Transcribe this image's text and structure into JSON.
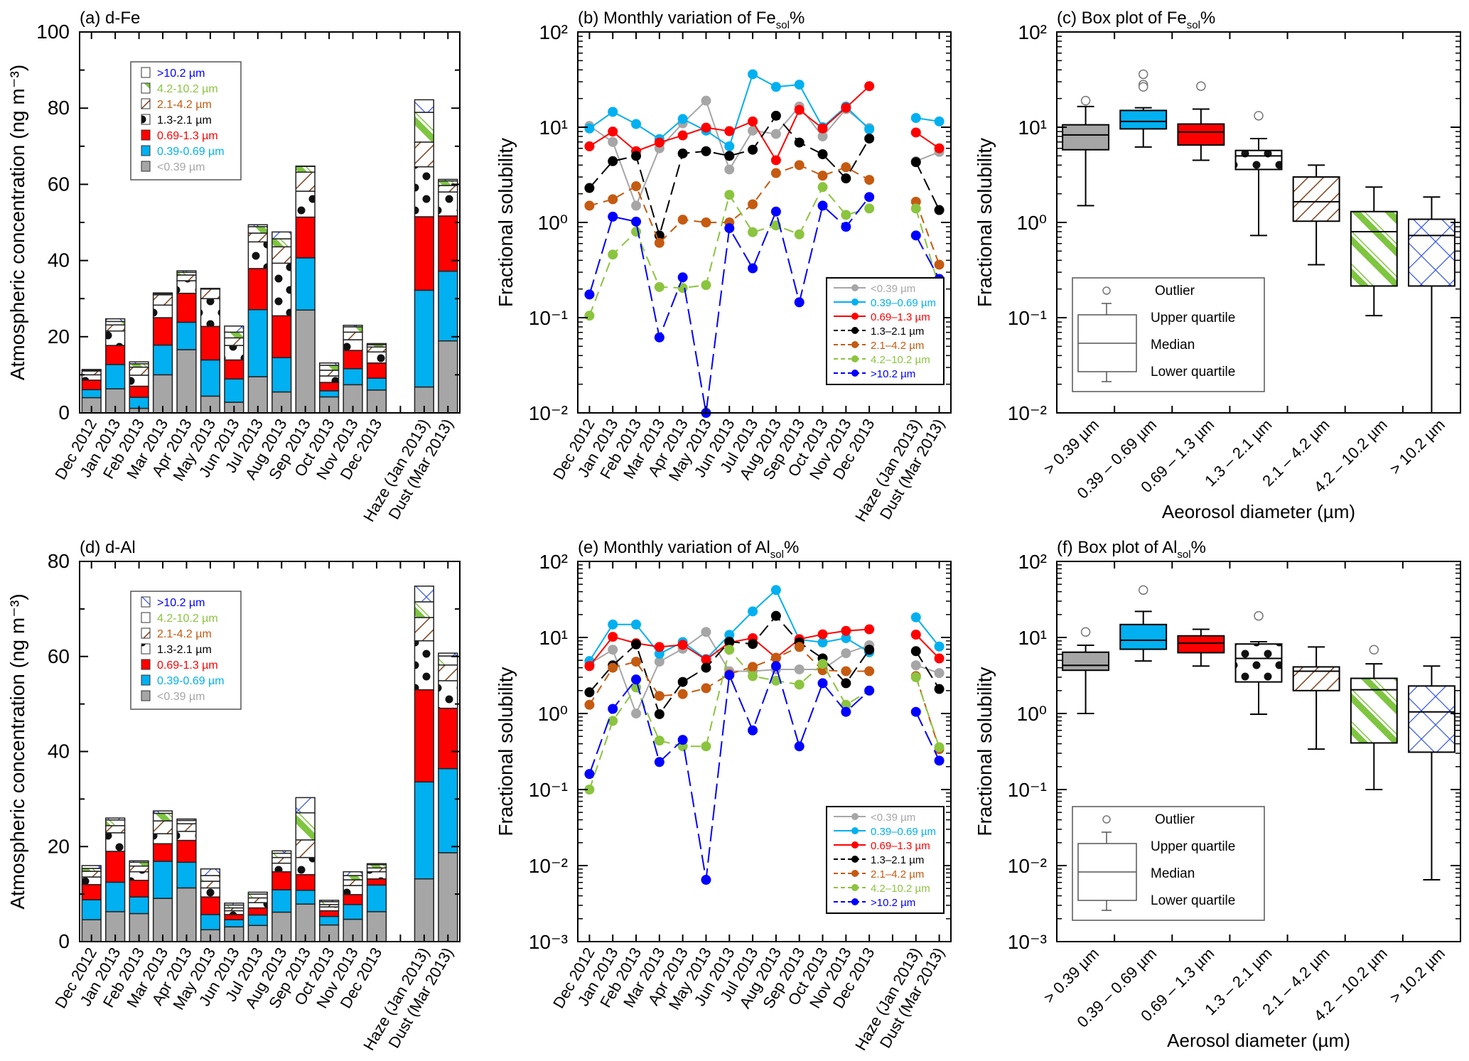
{
  "size_classes": [
    "<0.39 µm",
    "0.39-0.69 µm",
    "0.69-1.3 µm",
    "1.3-2.1 µm",
    "2.1-4.2 µm",
    "4.2-10.2 µm",
    ">10.2 µm"
  ],
  "colors": {
    "lt039": "#a6a6a6",
    "s039_069": "#00b0f0",
    "s069_13": "#ff0000",
    "s13_21": "#000000",
    "s21_42": "#c55a11",
    "s42_102": "#8bc43f",
    "gt102": "#0000ff"
  },
  "chart_data": [
    {
      "id": "a",
      "type": "bar",
      "stacked": true,
      "title": "(a) d-Fe",
      "ylabel": "Atmospheric concentration (ng m⁻³)",
      "ylim": [
        0,
        100
      ],
      "yticks": [
        0,
        20,
        40,
        60,
        80,
        100
      ],
      "categories": [
        "Dec 2012",
        "Jan 2013",
        "Feb 2013",
        "Mar 2013",
        "Apr 2013",
        "May 2013",
        "Jun 2013",
        "Jul 2013",
        "Aug 2013",
        "Sep 2013",
        "Oct 2013",
        "Nov 2013",
        "Dec 2013",
        "",
        "Haze (Jan 2013)",
        "Dust (Mar 2013)"
      ],
      "legend": [
        "<0.39 µm",
        "0.39-0.69 µm",
        "0.69-1.3 µm",
        "1.3-2.1 µm",
        "2.1-4.2 µm",
        "4.2-10.2 µm",
        ">10.2 µm"
      ],
      "legend_position": "top-left",
      "series": [
        {
          "name": "<0.39 µm",
          "values": [
            4.0,
            6.3,
            1.2,
            10.0,
            16.6,
            4.4,
            2.8,
            9.5,
            5.5,
            27.0,
            4.2,
            7.4,
            6.0,
            null,
            6.8,
            18.9
          ]
        },
        {
          "name": "0.39-0.69 µm",
          "values": [
            2.1,
            6.4,
            2.9,
            7.8,
            7.2,
            9.5,
            6.1,
            17.6,
            9.0,
            13.7,
            1.6,
            4.2,
            3.1,
            null,
            25.4,
            18.3
          ]
        },
        {
          "name": "0.69-1.3 µm",
          "values": [
            2.5,
            5.0,
            2.9,
            7.2,
            7.6,
            8.8,
            5.0,
            10.8,
            11.0,
            10.7,
            2.2,
            4.8,
            4.0,
            null,
            19.3,
            14.5
          ]
        },
        {
          "name": "1.3-2.1 µm",
          "values": [
            1.4,
            3.8,
            2.9,
            3.3,
            3.3,
            7.3,
            3.8,
            7.0,
            13.8,
            6.8,
            1.7,
            2.8,
            2.9,
            null,
            13.1,
            6.3
          ]
        },
        {
          "name": "2.1-4.2 µm",
          "values": [
            1.0,
            1.6,
            2.1,
            2.7,
            1.5,
            2.5,
            2.0,
            2.3,
            4.3,
            5.0,
            1.5,
            2.0,
            1.3,
            null,
            6.5,
            1.7
          ]
        },
        {
          "name": "4.2-10.2 µm",
          "values": [
            0.2,
            0.9,
            0.9,
            0.3,
            0.7,
            0.1,
            1.5,
            1.7,
            2.1,
            1.5,
            1.3,
            1.4,
            0.6,
            null,
            7.8,
            1.2
          ]
        },
        {
          "name": ">10.2 µm",
          "values": [
            0.2,
            0.7,
            0.5,
            0.2,
            0.4,
            0.1,
            1.6,
            0.5,
            1.8,
            0.1,
            0.6,
            0.4,
            0.3,
            null,
            3.3,
            0.4
          ]
        }
      ]
    },
    {
      "id": "b",
      "type": "line",
      "title": "(b) Monthly variation of Fe",
      "title_sub": "sol",
      "title_suffix": "%",
      "ylabel": "Fractional solubility",
      "yscale": "log",
      "ylim": [
        0.01,
        100
      ],
      "yticks": [
        "10⁻²",
        "10⁻¹",
        "10⁰",
        "10¹",
        "10²"
      ],
      "categories": [
        "Dec 2012",
        "Jan 2013",
        "Feb 2013",
        "Mar 2013",
        "Apr 2013",
        "May 2013",
        "Jun 2013",
        "Jul 2013",
        "Aug 2013",
        "Sep 2013",
        "Oct 2013",
        "Nov 2013",
        "Dec 2013",
        "",
        "Haze (Jan 2013)",
        "Dust (Mar 2013)"
      ],
      "legend_position": "bottom-right",
      "series": [
        {
          "name": "<0.39 µm",
          "values": [
            10.3,
            7.0,
            1.5,
            6.0,
            11.0,
            19.0,
            3.6,
            9.2,
            8.5,
            16.5,
            8.0,
            15.5,
            9.8,
            null,
            4.4,
            5.5
          ]
        },
        {
          "name": "0.39–0.69 µm",
          "values": [
            9.7,
            14.5,
            10.8,
            7.5,
            12.2,
            9.2,
            6.3,
            36.0,
            26.5,
            28.0,
            10.0,
            16.5,
            9.5,
            null,
            12.5,
            11.5
          ]
        },
        {
          "name": "0.69–1.3 µm",
          "values": [
            6.3,
            9.0,
            5.6,
            6.9,
            8.2,
            9.9,
            9.1,
            11.5,
            4.5,
            15.2,
            9.7,
            16.0,
            27.0,
            null,
            8.8,
            6.0
          ]
        },
        {
          "name": "1.3–2.1 µm",
          "values": [
            2.3,
            4.4,
            5.0,
            0.73,
            5.3,
            5.6,
            5.0,
            5.8,
            13.2,
            6.9,
            5.2,
            2.9,
            7.6,
            null,
            4.3,
            1.35
          ]
        },
        {
          "name": "2.1–4.2 µm",
          "values": [
            1.5,
            1.75,
            2.4,
            0.61,
            1.07,
            1.0,
            1.0,
            1.55,
            3.3,
            4.0,
            3.1,
            3.8,
            2.8,
            null,
            1.65,
            0.36
          ]
        },
        {
          "name": "4.2–10.2 µm",
          "values": [
            0.105,
            0.46,
            0.8,
            0.21,
            0.205,
            0.22,
            1.95,
            0.79,
            0.93,
            0.75,
            2.35,
            1.2,
            1.4,
            null,
            1.4,
            0.205
          ]
        },
        {
          "name": ">10.2 µm",
          "values": [
            0.175,
            1.15,
            1.02,
            0.062,
            0.265,
            0.01,
            0.87,
            0.33,
            1.3,
            0.145,
            1.5,
            0.9,
            1.85,
            null,
            0.73,
            0.255
          ]
        }
      ]
    },
    {
      "id": "c",
      "type": "box",
      "title": "(c) Box plot of Fe",
      "title_sub": "sol",
      "title_suffix": "%",
      "ylabel": "Fractional solubility",
      "xlabel": "Aeorosol diameter (µm)",
      "yscale": "log",
      "ylim": [
        0.01,
        100
      ],
      "yticks": [
        "10⁻²",
        "10⁻¹",
        "10⁰",
        "10¹",
        "10²"
      ],
      "categories": [
        "> 0.39 µm",
        "0.39 – 0.69 µm",
        "0.69 – 1.3 µm",
        "1.3 – 2.1 µm",
        "2.1 – 4.2 µm",
        "4.2 – 10.2 µm",
        "> 10.2 µm"
      ],
      "boxes": [
        {
          "whisker_low": 1.5,
          "q1": 5.8,
          "median": 8.3,
          "q3": 10.6,
          "whisker_high": 16.5,
          "outliers": [
            19.0
          ]
        },
        {
          "whisker_low": 6.2,
          "q1": 9.6,
          "median": 11.5,
          "q3": 15.0,
          "whisker_high": 16.0,
          "outliers": [
            36.0,
            28.0,
            26.5
          ]
        },
        {
          "whisker_low": 4.5,
          "q1": 6.5,
          "median": 8.9,
          "q3": 10.8,
          "whisker_high": 15.5,
          "outliers": [
            27.0
          ]
        },
        {
          "whisker_low": 0.73,
          "q1": 3.6,
          "median": 5.0,
          "q3": 5.7,
          "whisker_high": 7.6,
          "outliers": [
            13.2
          ]
        },
        {
          "whisker_low": 0.36,
          "q1": 1.03,
          "median": 1.65,
          "q3": 3.0,
          "whisker_high": 4.0,
          "outliers": []
        },
        {
          "whisker_low": 0.105,
          "q1": 0.215,
          "median": 0.8,
          "q3": 1.3,
          "whisker_high": 2.35,
          "outliers": []
        },
        {
          "whisker_low": 0.01,
          "q1": 0.215,
          "median": 0.73,
          "q3": 1.08,
          "whisker_high": 1.85,
          "outliers": []
        }
      ],
      "legend": {
        "outlier": "Outlier",
        "upper": "Upper quartile",
        "median": "Median",
        "lower": "Lower quartile"
      },
      "legend_position": "bottom-left"
    },
    {
      "id": "d",
      "type": "bar",
      "stacked": true,
      "title": "(d) d-Al",
      "ylabel": "Atmospheric concentration (ng m⁻³)",
      "ylim": [
        0,
        80
      ],
      "yticks": [
        0,
        20,
        40,
        60,
        80
      ],
      "categories": [
        "Dec 2012",
        "Jan 2013",
        "Feb 2013",
        "Mar 2013",
        "Apr 2013",
        "May 2013",
        "Jun 2013",
        "Jul 2013",
        "Aug 2013",
        "Sep 2013",
        "Oct 2013",
        "Nov 2013",
        "Dec 2013",
        "",
        "Haze (Jan 2013)",
        "Dust (Mar 2013)"
      ],
      "legend": [
        "<0.39 µm",
        "0.39-0.69 µm",
        "0.69-1.3 µm",
        "1.3-2.1 µm",
        "2.1-4.2 µm",
        "4.2-10.2 µm",
        ">10.2 µm"
      ],
      "legend_position": "top-left",
      "series": [
        {
          "name": "<0.39 µm",
          "values": [
            4.6,
            6.3,
            5.9,
            9.1,
            11.3,
            2.5,
            3.1,
            3.4,
            6.2,
            7.9,
            3.5,
            4.7,
            6.3,
            null,
            13.2,
            18.7
          ]
        },
        {
          "name": "0.39-0.69 µm",
          "values": [
            4.2,
            6.2,
            3.5,
            7.8,
            5.4,
            3.2,
            1.5,
            2.2,
            4.7,
            2.9,
            1.8,
            3.1,
            5.6,
            null,
            20.4,
            17.7
          ]
        },
        {
          "name": "0.69-1.3 µm",
          "values": [
            3.2,
            6.5,
            3.5,
            3.7,
            4.6,
            3.7,
            1.1,
            1.5,
            3.8,
            3.3,
            1.2,
            2.1,
            1.3,
            null,
            19.4,
            12.7
          ]
        },
        {
          "name": "1.3-2.1 µm",
          "values": [
            1.6,
            3.9,
            1.8,
            2.1,
            1.9,
            1.9,
            0.8,
            1.1,
            1.8,
            3.6,
            0.8,
            1.9,
            1.5,
            null,
            10.3,
            5.8
          ]
        },
        {
          "name": "2.1-4.2 µm",
          "values": [
            1.2,
            1.5,
            1.2,
            2.7,
            1.6,
            1.4,
            0.6,
            1.0,
            1.2,
            3.7,
            0.5,
            1.2,
            0.8,
            null,
            4.9,
            3.3
          ]
        },
        {
          "name": "4.2-10.2 µm",
          "values": [
            0.6,
            1.2,
            0.8,
            1.6,
            0.7,
            1.2,
            0.6,
            0.8,
            0.9,
            5.7,
            0.6,
            0.9,
            0.7,
            null,
            3.3,
            1.9
          ]
        },
        {
          "name": ">10.2 µm",
          "values": [
            0.6,
            0.4,
            0.3,
            0.5,
            0.3,
            1.4,
            0.4,
            0.4,
            0.5,
            3.2,
            0.3,
            0.8,
            0.2,
            null,
            3.3,
            0.6
          ]
        }
      ]
    },
    {
      "id": "e",
      "type": "line",
      "title": "(e) Monthly variation of Al",
      "title_sub": "sol",
      "title_suffix": "%",
      "ylabel": "Fractional solubility",
      "yscale": "log",
      "ylim": [
        0.001,
        100
      ],
      "yticks": [
        "10⁻³",
        "10⁻²",
        "10⁻¹",
        "10⁰",
        "10¹",
        "10²"
      ],
      "categories": [
        "Dec 2012",
        "Jan 2013",
        "Feb 2013",
        "Mar 2013",
        "Apr 2013",
        "May 2013",
        "Jun 2013",
        "Jul 2013",
        "Aug 2013",
        "Sep 2013",
        "Oct 2013",
        "Nov 2013",
        "Dec 2013",
        "",
        "Haze (Jan 2013)",
        "Dust (Mar 2013)"
      ],
      "legend_position": "bottom-right",
      "series": [
        {
          "name": "<0.39 µm",
          "values": [
            4.5,
            6.9,
            1.0,
            4.8,
            7.1,
            11.8,
            3.6,
            3.6,
            3.8,
            3.8,
            3.8,
            6.2,
            7.9,
            null,
            4.3,
            3.4
          ]
        },
        {
          "name": "0.39–0.69 µm",
          "values": [
            4.9,
            14.8,
            14.8,
            6.1,
            8.7,
            5.2,
            10.8,
            22.0,
            42.0,
            9.4,
            8.6,
            9.8,
            6.4,
            null,
            18.4,
            7.6
          ]
        },
        {
          "name": "0.69–1.3 µm",
          "values": [
            4.2,
            10.2,
            8.4,
            7.5,
            8.0,
            5.1,
            8.6,
            9.8,
            5.4,
            9.5,
            11.0,
            12.2,
            12.8,
            null,
            10.9,
            5.3
          ]
        },
        {
          "name": "1.3–2.1 µm",
          "values": [
            1.9,
            4.3,
            8.1,
            0.98,
            2.6,
            4.0,
            8.8,
            8.2,
            19.2,
            8.6,
            5.3,
            2.5,
            6.9,
            null,
            6.6,
            2.1
          ]
        },
        {
          "name": "2.1–4.2 µm",
          "values": [
            1.3,
            4.0,
            4.8,
            1.7,
            1.8,
            2.15,
            3.3,
            4.1,
            5.4,
            7.5,
            3.7,
            3.6,
            3.6,
            null,
            3.1,
            0.34
          ]
        },
        {
          "name": "4.2–10.2 µm",
          "values": [
            0.1,
            0.8,
            2.2,
            0.44,
            0.37,
            0.37,
            6.9,
            3.1,
            2.7,
            2.4,
            4.5,
            1.3,
            2.0,
            null,
            3.0,
            0.36
          ]
        },
        {
          "name": ">10.2 µm",
          "values": [
            0.16,
            1.15,
            2.8,
            0.23,
            0.45,
            0.0065,
            3.2,
            0.6,
            4.2,
            0.37,
            2.5,
            1.05,
            2.0,
            null,
            1.05,
            0.24
          ]
        }
      ]
    },
    {
      "id": "f",
      "type": "box",
      "title": "(f) Box plot of Al",
      "title_sub": "sol",
      "title_suffix": "%",
      "ylabel": "Fractional solubility",
      "xlabel": "Aerosol diameter (µm)",
      "yscale": "log",
      "ylim": [
        0.001,
        100
      ],
      "yticks": [
        "10⁻³",
        "10⁻²",
        "10⁻¹",
        "10⁰",
        "10¹",
        "10²"
      ],
      "categories": [
        "> 0.39 µm",
        "0.39 – 0.69 µm",
        "0.69 – 1.3 µm",
        "1.3 – 2.1 µm",
        "2.1 – 4.2 µm",
        "4.2 – 10.2 µm",
        "> 10.2 µm"
      ],
      "boxes": [
        {
          "whisker_low": 1.0,
          "q1": 3.7,
          "median": 4.3,
          "q3": 6.4,
          "whisker_high": 7.9,
          "outliers": [
            11.8
          ]
        },
        {
          "whisker_low": 4.9,
          "q1": 7.0,
          "median": 9.2,
          "q3": 14.8,
          "whisker_high": 22.0,
          "outliers": [
            42.0
          ]
        },
        {
          "whisker_low": 4.2,
          "q1": 6.3,
          "median": 8.4,
          "q3": 10.5,
          "whisker_high": 12.8,
          "outliers": []
        },
        {
          "whisker_low": 0.98,
          "q1": 2.6,
          "median": 5.3,
          "q3": 8.2,
          "whisker_high": 8.8,
          "outliers": [
            19.2
          ]
        },
        {
          "whisker_low": 0.34,
          "q1": 2.0,
          "median": 3.6,
          "q3": 4.1,
          "whisker_high": 7.5,
          "outliers": []
        },
        {
          "whisker_low": 0.1,
          "q1": 0.41,
          "median": 2.05,
          "q3": 2.9,
          "whisker_high": 4.5,
          "outliers": [
            6.9
          ]
        },
        {
          "whisker_low": 0.0065,
          "q1": 0.31,
          "median": 1.05,
          "q3": 2.3,
          "whisker_high": 4.2,
          "outliers": []
        }
      ],
      "legend": {
        "outlier": "Outlier",
        "upper": "Upper quartile",
        "median": "Median",
        "lower": "Lower quartile"
      },
      "legend_position": "bottom-left"
    }
  ]
}
